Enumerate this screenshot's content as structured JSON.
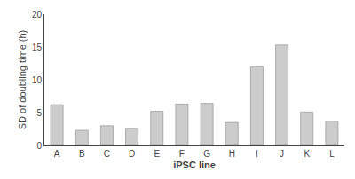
{
  "chart_data": {
    "type": "bar",
    "categories": [
      "A",
      "B",
      "C",
      "D",
      "E",
      "F",
      "G",
      "H",
      "I",
      "J",
      "K",
      "L"
    ],
    "values": [
      6.2,
      2.3,
      3.0,
      2.6,
      5.2,
      6.3,
      6.4,
      3.5,
      12.0,
      15.3,
      5.1,
      3.7
    ],
    "color": "#cccccc",
    "xlabel": "iPSC line",
    "ylabel": "SD of doubling time (h)",
    "ylim": [
      0,
      20
    ],
    "yticks": [
      0,
      5,
      10,
      15,
      20
    ],
    "grid": false
  }
}
